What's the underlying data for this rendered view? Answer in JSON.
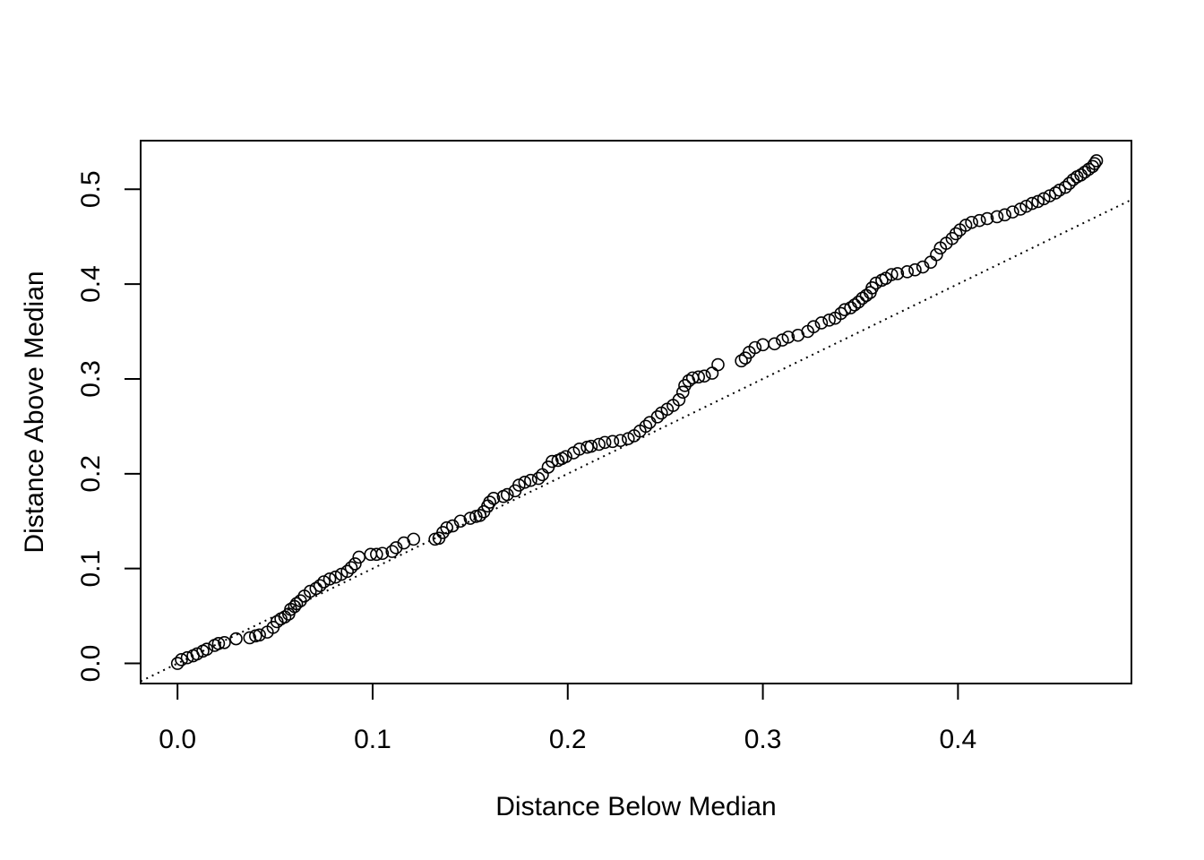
{
  "chart_data": {
    "type": "scatter",
    "title": "",
    "xlabel": "Distance Below Median",
    "ylabel": "Distance Above Median",
    "xlim": [
      -0.0189,
      0.4889
    ],
    "ylim": [
      -0.0212,
      0.5512
    ],
    "xticks": [
      0.0,
      0.1,
      0.2,
      0.3,
      0.4
    ],
    "xtick_labels": [
      "0.0",
      "0.1",
      "0.2",
      "0.3",
      "0.4"
    ],
    "yticks": [
      0.0,
      0.1,
      0.2,
      0.3,
      0.4,
      0.5
    ],
    "ytick_labels": [
      "0.0",
      "0.1",
      "0.2",
      "0.3",
      "0.4",
      "0.5"
    ],
    "grid": false,
    "marker": "open-circle",
    "reference_line": {
      "slope": 1,
      "intercept": 0,
      "style": "dotted"
    },
    "points": [
      [
        0.0,
        0.0
      ],
      [
        0.002,
        0.004
      ],
      [
        0.005,
        0.006
      ],
      [
        0.008,
        0.008
      ],
      [
        0.01,
        0.01
      ],
      [
        0.013,
        0.013
      ],
      [
        0.015,
        0.015
      ],
      [
        0.019,
        0.019
      ],
      [
        0.021,
        0.021
      ],
      [
        0.024,
        0.022
      ],
      [
        0.03,
        0.026
      ],
      [
        0.037,
        0.027
      ],
      [
        0.04,
        0.029
      ],
      [
        0.042,
        0.03
      ],
      [
        0.046,
        0.033
      ],
      [
        0.049,
        0.038
      ],
      [
        0.051,
        0.044
      ],
      [
        0.053,
        0.047
      ],
      [
        0.055,
        0.049
      ],
      [
        0.057,
        0.052
      ],
      [
        0.058,
        0.057
      ],
      [
        0.06,
        0.06
      ],
      [
        0.061,
        0.063
      ],
      [
        0.063,
        0.066
      ],
      [
        0.065,
        0.071
      ],
      [
        0.068,
        0.076
      ],
      [
        0.071,
        0.079
      ],
      [
        0.073,
        0.082
      ],
      [
        0.075,
        0.086
      ],
      [
        0.078,
        0.089
      ],
      [
        0.081,
        0.091
      ],
      [
        0.084,
        0.094
      ],
      [
        0.087,
        0.097
      ],
      [
        0.089,
        0.101
      ],
      [
        0.091,
        0.105
      ],
      [
        0.093,
        0.112
      ],
      [
        0.099,
        0.115
      ],
      [
        0.102,
        0.115
      ],
      [
        0.105,
        0.116
      ],
      [
        0.11,
        0.118
      ],
      [
        0.112,
        0.122
      ],
      [
        0.116,
        0.127
      ],
      [
        0.121,
        0.131
      ],
      [
        0.132,
        0.131
      ],
      [
        0.134,
        0.132
      ],
      [
        0.136,
        0.138
      ],
      [
        0.138,
        0.143
      ],
      [
        0.141,
        0.145
      ],
      [
        0.145,
        0.15
      ],
      [
        0.15,
        0.153
      ],
      [
        0.153,
        0.155
      ],
      [
        0.155,
        0.156
      ],
      [
        0.157,
        0.16
      ],
      [
        0.159,
        0.166
      ],
      [
        0.16,
        0.17
      ],
      [
        0.162,
        0.174
      ],
      [
        0.167,
        0.176
      ],
      [
        0.169,
        0.178
      ],
      [
        0.173,
        0.182
      ],
      [
        0.175,
        0.188
      ],
      [
        0.178,
        0.191
      ],
      [
        0.181,
        0.193
      ],
      [
        0.185,
        0.195
      ],
      [
        0.187,
        0.199
      ],
      [
        0.19,
        0.207
      ],
      [
        0.192,
        0.213
      ],
      [
        0.195,
        0.214
      ],
      [
        0.197,
        0.216
      ],
      [
        0.199,
        0.218
      ],
      [
        0.203,
        0.222
      ],
      [
        0.206,
        0.226
      ],
      [
        0.21,
        0.228
      ],
      [
        0.212,
        0.229
      ],
      [
        0.216,
        0.231
      ],
      [
        0.219,
        0.233
      ],
      [
        0.223,
        0.234
      ],
      [
        0.227,
        0.235
      ],
      [
        0.231,
        0.237
      ],
      [
        0.234,
        0.24
      ],
      [
        0.237,
        0.245
      ],
      [
        0.24,
        0.25
      ],
      [
        0.242,
        0.254
      ],
      [
        0.246,
        0.26
      ],
      [
        0.248,
        0.264
      ],
      [
        0.251,
        0.268
      ],
      [
        0.254,
        0.272
      ],
      [
        0.257,
        0.278
      ],
      [
        0.259,
        0.286
      ],
      [
        0.26,
        0.293
      ],
      [
        0.262,
        0.298
      ],
      [
        0.264,
        0.301
      ],
      [
        0.267,
        0.302
      ],
      [
        0.27,
        0.303
      ],
      [
        0.274,
        0.306
      ],
      [
        0.277,
        0.315
      ],
      [
        0.289,
        0.319
      ],
      [
        0.291,
        0.322
      ],
      [
        0.293,
        0.328
      ],
      [
        0.296,
        0.333
      ],
      [
        0.3,
        0.336
      ],
      [
        0.306,
        0.337
      ],
      [
        0.31,
        0.341
      ],
      [
        0.313,
        0.344
      ],
      [
        0.318,
        0.346
      ],
      [
        0.323,
        0.35
      ],
      [
        0.326,
        0.355
      ],
      [
        0.33,
        0.359
      ],
      [
        0.334,
        0.362
      ],
      [
        0.337,
        0.364
      ],
      [
        0.34,
        0.369
      ],
      [
        0.342,
        0.373
      ],
      [
        0.345,
        0.375
      ],
      [
        0.347,
        0.378
      ],
      [
        0.349,
        0.381
      ],
      [
        0.351,
        0.385
      ],
      [
        0.353,
        0.388
      ],
      [
        0.355,
        0.391
      ],
      [
        0.356,
        0.396
      ],
      [
        0.358,
        0.401
      ],
      [
        0.361,
        0.404
      ],
      [
        0.363,
        0.406
      ],
      [
        0.366,
        0.41
      ],
      [
        0.369,
        0.411
      ],
      [
        0.374,
        0.413
      ],
      [
        0.378,
        0.415
      ],
      [
        0.382,
        0.418
      ],
      [
        0.386,
        0.423
      ],
      [
        0.389,
        0.431
      ],
      [
        0.391,
        0.438
      ],
      [
        0.394,
        0.443
      ],
      [
        0.397,
        0.448
      ],
      [
        0.399,
        0.453
      ],
      [
        0.401,
        0.457
      ],
      [
        0.404,
        0.462
      ],
      [
        0.407,
        0.465
      ],
      [
        0.411,
        0.467
      ],
      [
        0.415,
        0.469
      ],
      [
        0.42,
        0.471
      ],
      [
        0.424,
        0.473
      ],
      [
        0.428,
        0.476
      ],
      [
        0.432,
        0.479
      ],
      [
        0.435,
        0.482
      ],
      [
        0.438,
        0.485
      ],
      [
        0.441,
        0.487
      ],
      [
        0.444,
        0.49
      ],
      [
        0.447,
        0.493
      ],
      [
        0.45,
        0.496
      ],
      [
        0.452,
        0.499
      ],
      [
        0.455,
        0.502
      ],
      [
        0.457,
        0.506
      ],
      [
        0.459,
        0.51
      ],
      [
        0.461,
        0.513
      ],
      [
        0.463,
        0.515
      ],
      [
        0.465,
        0.518
      ],
      [
        0.467,
        0.521
      ],
      [
        0.469,
        0.524
      ],
      [
        0.47,
        0.527
      ],
      [
        0.471,
        0.53
      ]
    ]
  }
}
